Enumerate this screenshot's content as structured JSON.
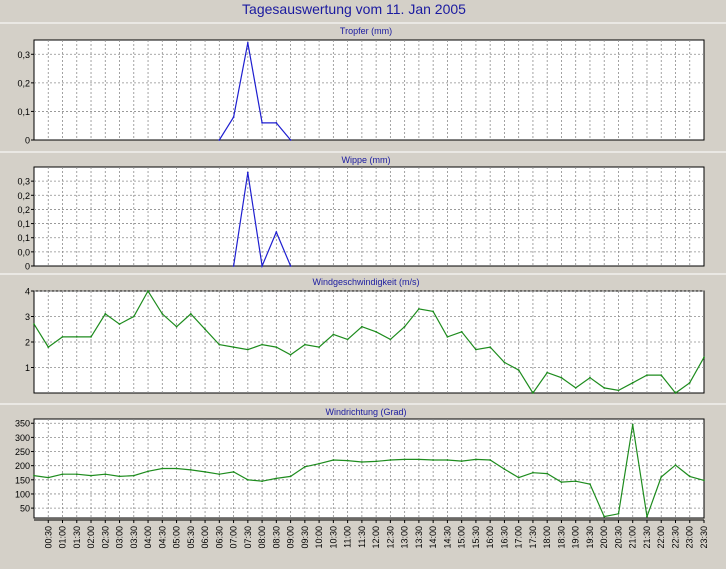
{
  "page": {
    "title": "Tagesauswertung vom 11. Jan 2005"
  },
  "time_labels": [
    "00:30",
    "01:00",
    "01:30",
    "02:00",
    "02:30",
    "03:00",
    "03:30",
    "04:00",
    "04:30",
    "05:00",
    "05:30",
    "06:00",
    "06:30",
    "07:00",
    "07:30",
    "08:00",
    "08:30",
    "09:00",
    "09:30",
    "10:00",
    "10:30",
    "11:00",
    "11:30",
    "12:00",
    "12:30",
    "13:00",
    "13:30",
    "14:00",
    "14:30",
    "15:00",
    "15:30",
    "16:00",
    "16:30",
    "17:00",
    "17:30",
    "18:00",
    "18:30",
    "19:00",
    "19:30",
    "20:00",
    "20:30",
    "21:00",
    "21:30",
    "22:00",
    "22:30",
    "23:00",
    "23:30"
  ],
  "chart_data": [
    {
      "type": "line",
      "title": "Tropfer (mm)",
      "ylim": [
        0,
        0.35
      ],
      "yticks": [
        0,
        0.1,
        0.2,
        0.3
      ],
      "ytick_labels": [
        "0",
        "0,1",
        "0,2",
        "0,3"
      ],
      "grid": true,
      "color": "#1f1fd0",
      "x": [
        "06:30",
        "07:00",
        "07:30",
        "08:00",
        "08:30",
        "09:00"
      ],
      "values": [
        0,
        0.08,
        0.34,
        0.06,
        0.06,
        0.0
      ]
    },
    {
      "type": "line",
      "title": "Wippe (mm)",
      "ylim": [
        0,
        0.35
      ],
      "yticks": [
        0,
        0.05,
        0.1,
        0.15,
        0.2,
        0.25,
        0.3
      ],
      "ytick_labels": [
        "0",
        "0,0",
        "0,1",
        "0,1",
        "0,2",
        "0,2",
        "0,3"
      ],
      "grid": true,
      "color": "#1f1fd0",
      "x": [
        "07:00",
        "07:30",
        "08:00",
        "08:30",
        "09:00"
      ],
      "values": [
        0,
        0.33,
        0,
        0.12,
        0
      ]
    },
    {
      "type": "line",
      "title": "Windgeschwindigkeit (m/s)",
      "ylim": [
        0,
        4
      ],
      "yticks": [
        1,
        2,
        3,
        4
      ],
      "ytick_labels": [
        "1",
        "2",
        "3",
        "4"
      ],
      "grid": true,
      "color": "#1e8c1e",
      "x": [
        "00:00",
        "00:30",
        "01:00",
        "01:30",
        "02:00",
        "02:30",
        "03:00",
        "03:30",
        "04:00",
        "04:30",
        "05:00",
        "05:30",
        "06:00",
        "06:30",
        "07:00",
        "07:30",
        "08:00",
        "08:30",
        "09:00",
        "09:30",
        "10:00",
        "10:30",
        "11:00",
        "11:30",
        "12:00",
        "12:30",
        "13:00",
        "13:30",
        "14:00",
        "14:30",
        "15:00",
        "15:30",
        "16:00",
        "16:30",
        "17:00",
        "17:30",
        "18:00",
        "18:30",
        "19:00",
        "19:30",
        "20:00",
        "20:30",
        "21:00",
        "21:30",
        "22:00",
        "22:30",
        "23:00",
        "23:30"
      ],
      "values": [
        2.7,
        1.8,
        2.2,
        2.2,
        2.2,
        3.1,
        2.7,
        3.0,
        4.0,
        3.1,
        2.6,
        3.1,
        2.5,
        1.9,
        1.8,
        1.7,
        1.9,
        1.8,
        1.5,
        1.9,
        1.8,
        2.3,
        2.1,
        2.6,
        2.4,
        2.1,
        2.6,
        3.3,
        3.2,
        2.2,
        2.4,
        1.7,
        1.8,
        1.2,
        0.9,
        0.0,
        0.8,
        0.6,
        0.2,
        0.6,
        0.2,
        0.1,
        0.4,
        0.7,
        0.7,
        0.0,
        0.4,
        1.4
      ]
    },
    {
      "type": "line",
      "title": "Windrichtung (Grad)",
      "ylim": [
        15,
        365
      ],
      "yticks": [
        50,
        100,
        150,
        200,
        250,
        300,
        350
      ],
      "ytick_labels": [
        "50",
        "100",
        "150",
        "200",
        "250",
        "300",
        "350"
      ],
      "grid": true,
      "color": "#1e8c1e",
      "x": [
        "00:00",
        "00:30",
        "01:00",
        "01:30",
        "02:00",
        "02:30",
        "03:00",
        "03:30",
        "04:00",
        "04:30",
        "05:00",
        "05:30",
        "06:00",
        "06:30",
        "07:00",
        "07:30",
        "08:00",
        "08:30",
        "09:00",
        "09:30",
        "10:00",
        "10:30",
        "11:00",
        "11:30",
        "12:00",
        "12:30",
        "13:00",
        "13:30",
        "14:00",
        "14:30",
        "15:00",
        "15:30",
        "16:00",
        "16:30",
        "17:00",
        "17:30",
        "18:00",
        "18:30",
        "19:00",
        "19:30",
        "20:00",
        "20:30",
        "21:00",
        "21:30",
        "22:00",
        "22:30",
        "23:00",
        "23:30"
      ],
      "values": [
        165,
        158,
        170,
        170,
        165,
        170,
        162,
        165,
        180,
        190,
        190,
        185,
        178,
        170,
        178,
        150,
        145,
        155,
        162,
        196,
        207,
        220,
        218,
        213,
        215,
        220,
        222,
        222,
        220,
        220,
        216,
        222,
        220,
        188,
        158,
        175,
        172,
        142,
        145,
        135,
        20,
        30,
        345,
        20,
        160,
        202,
        162,
        148
      ]
    }
  ]
}
